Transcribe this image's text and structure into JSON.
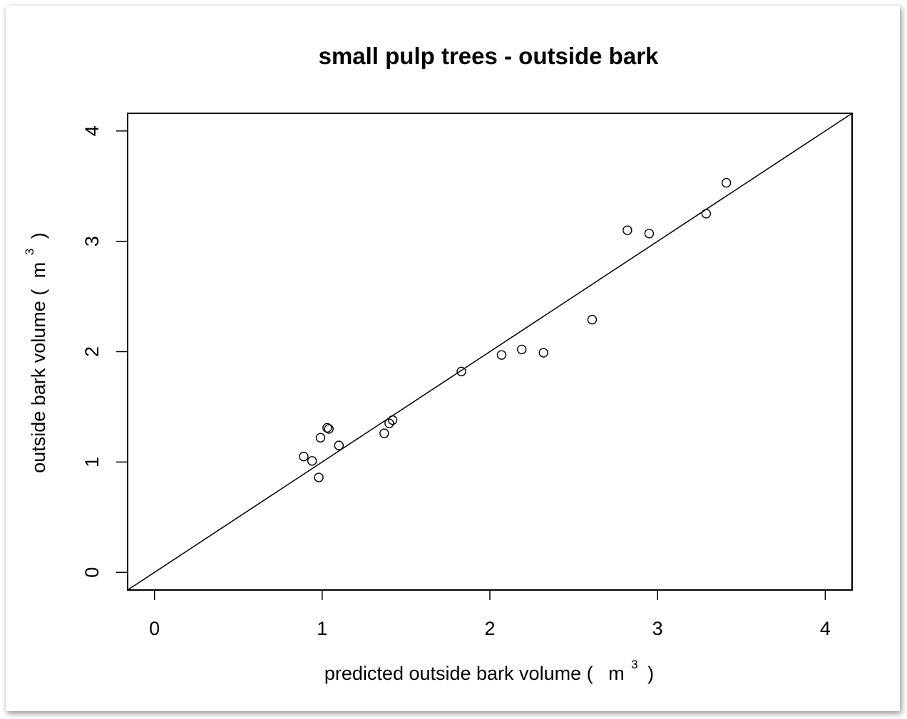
{
  "chart_data": {
    "type": "scatter",
    "title": "small pulp trees - outside bark",
    "xlabel": {
      "prefix": "predicted outside bark volume (",
      "unit": "m",
      "sup": "3",
      "suffix": ")"
    },
    "ylabel": {
      "prefix": "outside bark volume (",
      "unit": "m",
      "sup": "3",
      "suffix": ")"
    },
    "xlim": [
      -0.16,
      4.16
    ],
    "ylim": [
      -0.16,
      4.16
    ],
    "xticks": [
      "0",
      "1",
      "2",
      "3",
      "4"
    ],
    "yticks": [
      "0",
      "1",
      "2",
      "3",
      "4"
    ],
    "reference_line": {
      "type": "identity",
      "slope": 1,
      "intercept": 0
    },
    "grid": false,
    "legend": "none",
    "series": [
      {
        "marker": "open-circle",
        "points": [
          {
            "x": 0.89,
            "y": 1.05
          },
          {
            "x": 0.94,
            "y": 1.01
          },
          {
            "x": 0.98,
            "y": 0.86
          },
          {
            "x": 0.99,
            "y": 1.22
          },
          {
            "x": 1.03,
            "y": 1.31
          },
          {
            "x": 1.04,
            "y": 1.3
          },
          {
            "x": 1.1,
            "y": 1.15
          },
          {
            "x": 1.37,
            "y": 1.26
          },
          {
            "x": 1.4,
            "y": 1.35
          },
          {
            "x": 1.42,
            "y": 1.38
          },
          {
            "x": 1.83,
            "y": 1.82
          },
          {
            "x": 2.07,
            "y": 1.97
          },
          {
            "x": 2.19,
            "y": 2.02
          },
          {
            "x": 2.32,
            "y": 1.99
          },
          {
            "x": 2.61,
            "y": 2.29
          },
          {
            "x": 2.82,
            "y": 3.1
          },
          {
            "x": 2.95,
            "y": 3.07
          },
          {
            "x": 3.29,
            "y": 3.25
          },
          {
            "x": 3.41,
            "y": 3.53
          }
        ]
      }
    ]
  }
}
